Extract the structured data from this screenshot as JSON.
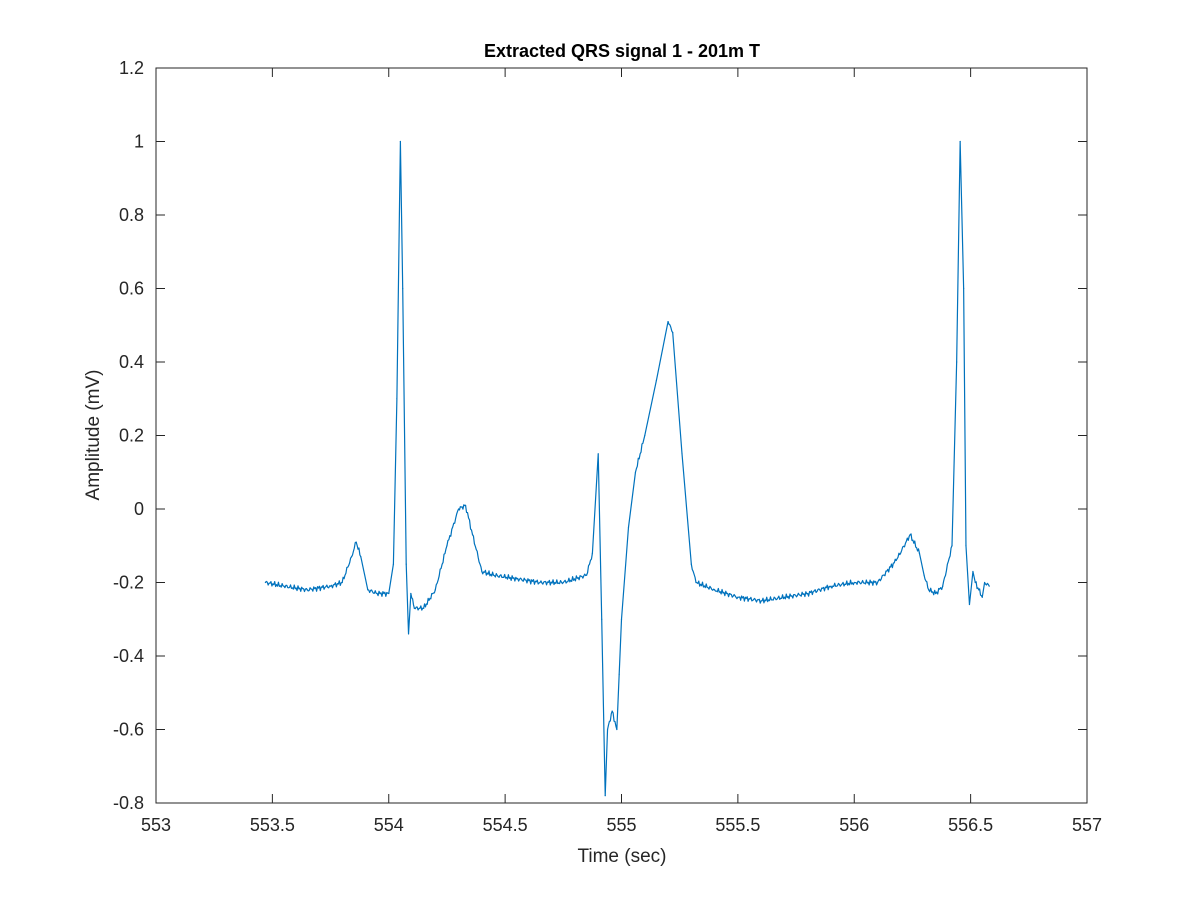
{
  "chart_data": {
    "type": "line",
    "title": "Extracted QRS signal 1 - 201m T",
    "xlabel": "Time (sec)",
    "ylabel": "Amplitude (mV)",
    "xlim": [
      553,
      557
    ],
    "ylim": [
      -0.8,
      1.2
    ],
    "xticks": [
      553,
      553.5,
      554,
      554.5,
      555,
      555.5,
      556,
      556.5,
      557
    ],
    "xtick_labels": [
      "553",
      "553.5",
      "554",
      "554.5",
      "555",
      "555.5",
      "556",
      "556.5",
      "557"
    ],
    "yticks": [
      -0.8,
      -0.6,
      -0.4,
      -0.2,
      0,
      0.2,
      0.4,
      0.6,
      0.8,
      1,
      1.2
    ],
    "ytick_labels": [
      "-0.8",
      "-0.6",
      "-0.4",
      "-0.2",
      "0",
      "0.2",
      "0.4",
      "0.6",
      "0.8",
      "1",
      "1.2"
    ],
    "grid": false,
    "line_color": "#0072BD",
    "series": [
      {
        "x": [
          553.47,
          553.55,
          553.65,
          553.75,
          553.8,
          553.84,
          553.86,
          553.88,
          553.91,
          553.95,
          554.0,
          554.02,
          554.035,
          554.05,
          554.06,
          554.075,
          554.085,
          554.095,
          554.11,
          554.15,
          554.2,
          554.25,
          554.3,
          554.33,
          554.36,
          554.4,
          554.45,
          554.55,
          554.65,
          554.75,
          554.85,
          554.875,
          554.9,
          554.915,
          554.93,
          554.94,
          554.96,
          554.98,
          554.99,
          555.0,
          555.03,
          555.06,
          555.1,
          555.15,
          555.2,
          555.22,
          555.26,
          555.3,
          555.32,
          555.4,
          555.5,
          555.6,
          555.7,
          555.8,
          555.9,
          556.0,
          556.1,
          556.18,
          556.24,
          556.28,
          556.3,
          556.32,
          556.35,
          556.38,
          556.42,
          556.44,
          556.455,
          556.47,
          556.48,
          556.495,
          556.51,
          556.52,
          556.535,
          556.55,
          556.56,
          556.58
        ],
        "y": [
          -0.2,
          -0.21,
          -0.22,
          -0.21,
          -0.2,
          -0.13,
          -0.09,
          -0.13,
          -0.22,
          -0.23,
          -0.23,
          -0.15,
          0.3,
          1.0,
          0.6,
          -0.15,
          -0.34,
          -0.23,
          -0.27,
          -0.27,
          -0.22,
          -0.1,
          0.0,
          0.01,
          -0.07,
          -0.17,
          -0.18,
          -0.19,
          -0.2,
          -0.2,
          -0.18,
          -0.12,
          0.15,
          -0.3,
          -0.78,
          -0.6,
          -0.55,
          -0.6,
          -0.45,
          -0.3,
          -0.05,
          0.1,
          0.2,
          0.35,
          0.51,
          0.48,
          0.15,
          -0.15,
          -0.2,
          -0.22,
          -0.24,
          -0.25,
          -0.24,
          -0.23,
          -0.21,
          -0.2,
          -0.2,
          -0.14,
          -0.07,
          -0.12,
          -0.18,
          -0.22,
          -0.23,
          -0.21,
          -0.1,
          0.4,
          1.0,
          0.6,
          -0.1,
          -0.26,
          -0.17,
          -0.2,
          -0.22,
          -0.24,
          -0.2,
          -0.21
        ]
      }
    ]
  }
}
